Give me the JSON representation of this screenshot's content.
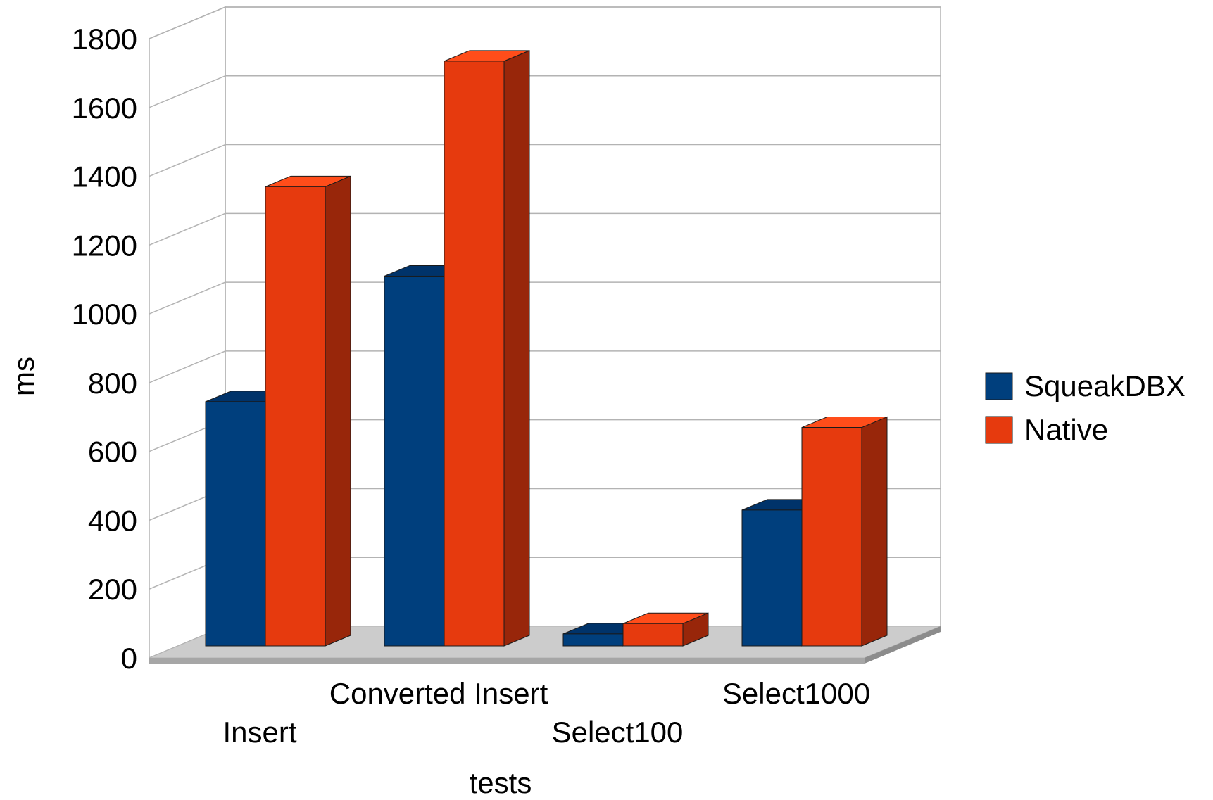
{
  "chart_data": {
    "type": "bar",
    "style": "3d-clustered",
    "categories": [
      "Insert",
      "Converted Insert",
      "Select100",
      "Select1000"
    ],
    "series": [
      {
        "name": "SqueakDBX",
        "values": [
          710,
          1075,
          35,
          395
        ],
        "color": "#003f7d",
        "side_color": "#002a55",
        "top_color": "#00336a"
      },
      {
        "name": "Native",
        "values": [
          1335,
          1700,
          65,
          635
        ],
        "color": "#e63a0e",
        "side_color": "#98260a",
        "top_color": "#ff4d1a"
      }
    ],
    "xlabel": "tests",
    "ylabel": "ms",
    "ylim": [
      0,
      1800
    ],
    "yticks": [
      "0",
      "200",
      "400",
      "600",
      "800",
      "1000",
      "1200",
      "1400",
      "1600",
      "1800"
    ],
    "grid": true,
    "legend": "right"
  }
}
